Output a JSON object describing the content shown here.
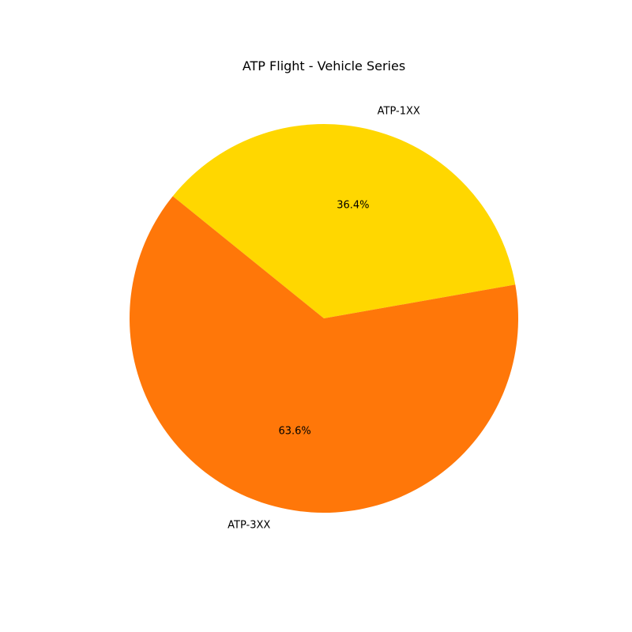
{
  "chart_data": {
    "type": "pie",
    "title": "ATP Flight - Vehicle Series",
    "categories": [
      "ATP-1XX",
      "ATP-3XX"
    ],
    "values": [
      36.4,
      63.6
    ],
    "percent_labels": [
      "36.4%",
      "63.6%"
    ],
    "colors": [
      "#ffd700",
      "#ff7709"
    ],
    "start_angle_deg": 10,
    "direction": "counterclockwise",
    "legend": "none"
  }
}
